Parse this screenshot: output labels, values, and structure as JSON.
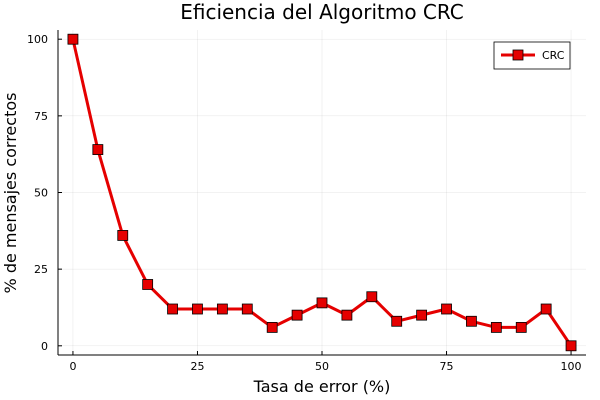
{
  "chart_data": {
    "type": "line",
    "title": "Eficiencia del Algoritmo CRC",
    "xlabel": "Tasa de error (%)",
    "ylabel": "% de mensajes correctos",
    "xlim": [
      -3,
      103
    ],
    "ylim": [
      -3,
      103
    ],
    "xticks": [
      0,
      25,
      50,
      75,
      100
    ],
    "yticks": [
      0,
      25,
      50,
      75,
      100
    ],
    "grid": true,
    "legend_position": "top-right",
    "series": [
      {
        "name": "CRC",
        "color": "#e50000",
        "marker": "square",
        "x": [
          0,
          5,
          10,
          15,
          20,
          25,
          30,
          35,
          40,
          45,
          50,
          55,
          60,
          65,
          70,
          75,
          80,
          85,
          90,
          95,
          100
        ],
        "y": [
          100,
          64,
          36,
          20,
          12,
          12,
          12,
          12,
          6,
          10,
          14,
          10,
          16,
          8,
          10,
          12,
          8,
          6,
          6,
          12,
          0
        ]
      }
    ]
  }
}
